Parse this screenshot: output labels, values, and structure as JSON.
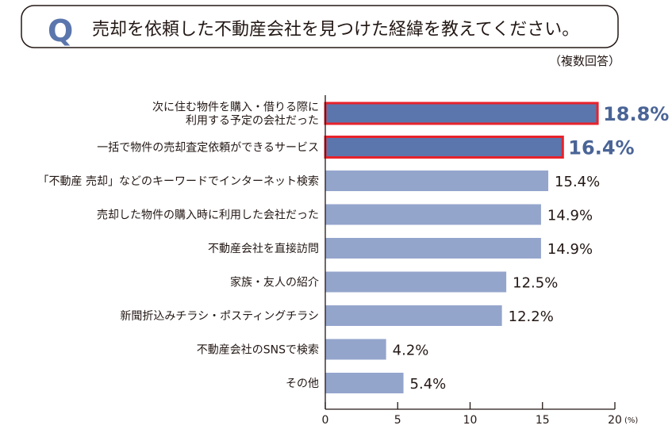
{
  "header": {
    "q_mark": "Q",
    "question": "売却を依頼した不動産会社を見つけた経緯を教えてください。",
    "note": "（複数回答）"
  },
  "colors": {
    "bar": "#94a5cc",
    "bar_highlight": "#5b76ad",
    "highlight_border": "#e8222b",
    "highlight_text": "#4a6496",
    "q_mark": "#5b76ad"
  },
  "chart_data": {
    "type": "bar",
    "orientation": "horizontal",
    "categories": [
      [
        "次に住む物件を購入・借りる際に",
        "利用する予定の会社だった"
      ],
      [
        "一括で物件の売却査定依頼ができるサービス"
      ],
      [
        "「不動産 売却」などのキーワードでインターネット検索"
      ],
      [
        "売却した物件の購入時に利用した会社だった"
      ],
      [
        "不動産会社を直接訪問"
      ],
      [
        "家族・友人の紹介"
      ],
      [
        "新聞折込みチラシ・ポスティングチラシ"
      ],
      [
        "不動産会社のSNSで検索"
      ],
      [
        "その他"
      ]
    ],
    "values": [
      18.8,
      16.4,
      15.4,
      14.9,
      14.9,
      12.5,
      12.2,
      4.2,
      5.4
    ],
    "value_labels": [
      "18.8%",
      "16.4%",
      "15.4%",
      "14.9%",
      "14.9%",
      "12.5%",
      "12.2%",
      "4.2%",
      "5.4%"
    ],
    "highlighted": [
      true,
      true,
      false,
      false,
      false,
      false,
      false,
      false,
      false
    ],
    "xlim": [
      0,
      20
    ],
    "xticks": [
      "0",
      "5",
      "10",
      "15",
      "20"
    ],
    "xunit": "(%)",
    "grid": false
  }
}
